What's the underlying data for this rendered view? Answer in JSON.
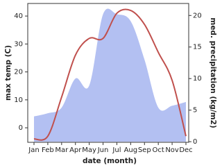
{
  "chart_data": {
    "type": "line-area",
    "x_label": "date (month)",
    "y_label": "max temp (C)",
    "y2_label": "med. precipitation (kg/m2)",
    "categories": [
      "Jan",
      "Feb",
      "Mar",
      "Apr",
      "May",
      "Jun",
      "Jul",
      "Aug",
      "Sep",
      "Oct",
      "Nov",
      "Dec"
    ],
    "series": [
      {
        "name": "med. precipitation",
        "type": "area",
        "axis": "y2",
        "color": "#b3c0f2",
        "values": [
          4.0,
          4.5,
          5.4,
          10,
          8.9,
          20.2,
          20.2,
          19.1,
          13,
          5.4,
          5.7,
          6.3
        ]
      },
      {
        "name": "max temp",
        "type": "line",
        "color": "#c0504d",
        "values": [
          -4,
          -3,
          11,
          26,
          32,
          32,
          41,
          42,
          37,
          27,
          17,
          -3
        ]
      }
    ],
    "ylim": [
      -5.2,
      44.5
    ],
    "yticks": [
      0,
      10,
      20,
      30,
      40
    ],
    "y2lim": [
      -0.1,
      21.9
    ],
    "y2ticks": [
      0,
      5,
      10,
      15,
      20
    ]
  }
}
